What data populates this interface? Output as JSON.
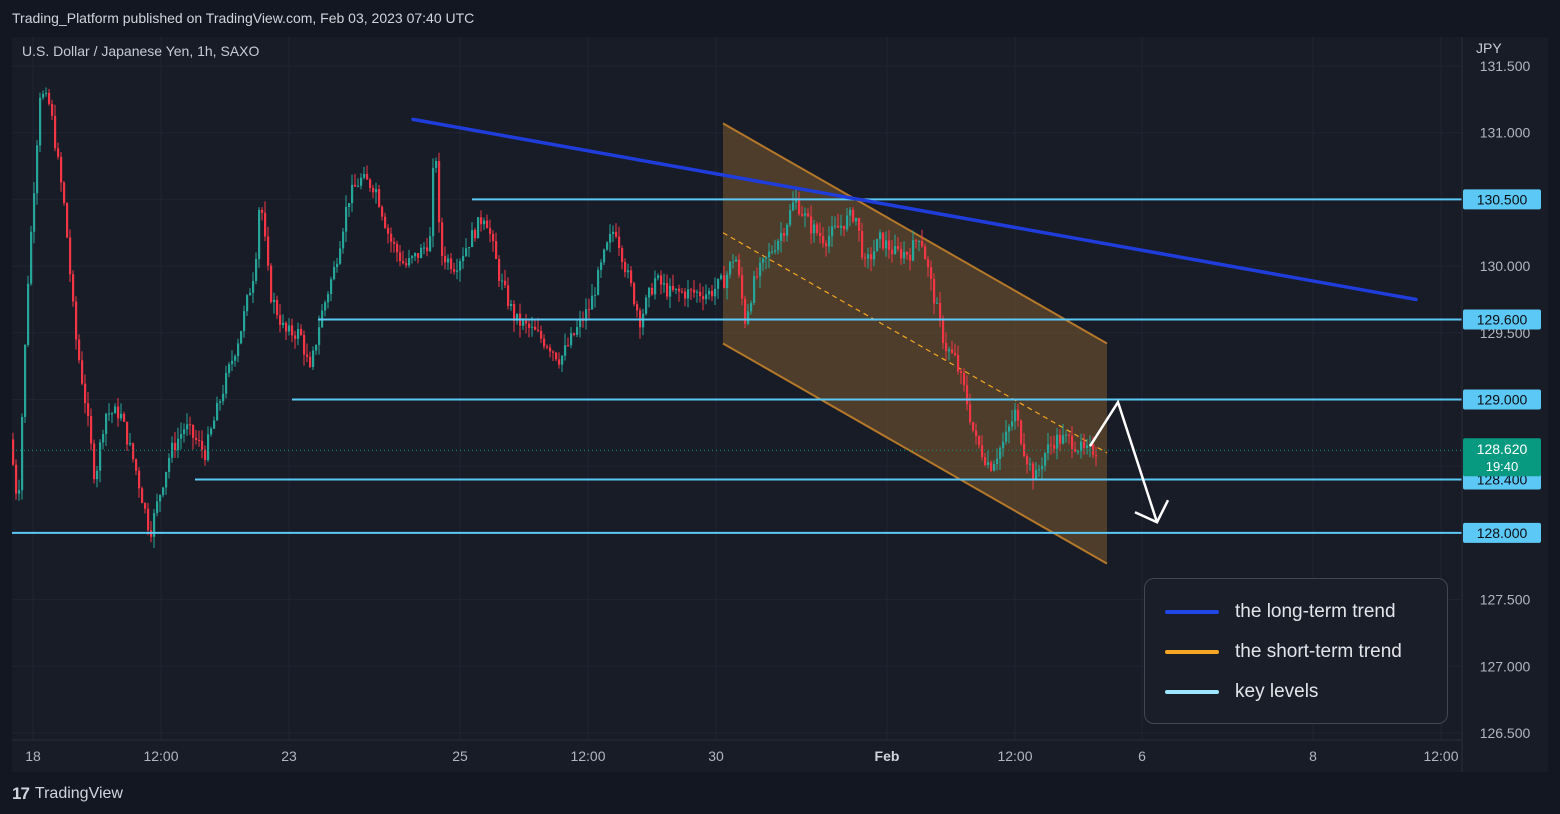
{
  "header": {
    "publisher_line": "Trading_Platform published on TradingView.com, Feb 03, 2023 07:40 UTC"
  },
  "chart": {
    "symbol_title": "U.S. Dollar / Japanese Yen, 1h, SAXO",
    "currency": "JPY",
    "brand": "TradingView",
    "brand_logo": "17"
  },
  "colors": {
    "background": "#131722",
    "chart_background": "#181c27",
    "up_candle": "#26a69a",
    "down_candle": "#f23645",
    "long_term_trend": "#1f3ddb",
    "short_term_trend": "#f5a623",
    "key_levels": "#5cc8f5",
    "channel_fill": "#7a5a2e",
    "last_price_badge": "#089981"
  },
  "legend": {
    "items": [
      {
        "label": "the long-term trend",
        "color": "#2146e8"
      },
      {
        "label": "the short-term trend",
        "color": "#f5a623"
      },
      {
        "label": "key levels",
        "color": "#9ee6ff"
      }
    ]
  },
  "chart_data": {
    "type": "candlestick",
    "y_axis": {
      "side": "right",
      "range": [
        126.4,
        131.6
      ],
      "ticks": [
        "131.500",
        "131.000",
        "130.500",
        "130.000",
        "129.500",
        "129.000",
        "128.500",
        "128.000",
        "127.500",
        "127.000",
        "126.500"
      ]
    },
    "x_axis": {
      "ticks": [
        "18",
        "12:00",
        "23",
        "25",
        "12:00",
        "30",
        "Feb",
        "12:00",
        "6",
        "8",
        "12:00"
      ]
    },
    "last_price": {
      "value": "128.620",
      "countdown": "19:40"
    },
    "key_levels": [
      {
        "value": 130.5,
        "label": "130.500"
      },
      {
        "value": 129.6,
        "label": "129.600"
      },
      {
        "value": 129.0,
        "label": "129.000"
      },
      {
        "value": 128.4,
        "label": "128.400"
      },
      {
        "value": 128.0,
        "label": "128.000"
      }
    ],
    "long_term_trendline": {
      "from": 131.1,
      "to": 129.75
    },
    "descending_channel": {
      "upper": {
        "from": 131.07,
        "to": 129.42
      },
      "lower": {
        "from": 129.42,
        "to": 127.77
      },
      "mid": {
        "from": 130.25,
        "to": 128.6
      }
    },
    "forecast_path": [
      128.65,
      128.98,
      128.08
    ],
    "candle_path": [
      [
        0,
        128.7
      ],
      [
        8,
        128.2
      ],
      [
        18,
        129.9
      ],
      [
        30,
        131.3
      ],
      [
        40,
        131.2
      ],
      [
        55,
        130.4
      ],
      [
        65,
        129.5
      ],
      [
        75,
        129.0
      ],
      [
        85,
        128.4
      ],
      [
        95,
        128.9
      ],
      [
        110,
        128.9
      ],
      [
        125,
        128.5
      ],
      [
        140,
        128.0
      ],
      [
        160,
        128.6
      ],
      [
        175,
        128.8
      ],
      [
        195,
        128.6
      ],
      [
        210,
        129.0
      ],
      [
        230,
        129.5
      ],
      [
        245,
        130.0
      ],
      [
        250,
        130.55
      ],
      [
        260,
        129.8
      ],
      [
        275,
        129.5
      ],
      [
        290,
        129.5
      ],
      [
        300,
        129.2
      ],
      [
        310,
        129.6
      ],
      [
        325,
        130.0
      ],
      [
        338,
        130.5
      ],
      [
        350,
        130.65
      ],
      [
        365,
        130.6
      ],
      [
        380,
        130.2
      ],
      [
        395,
        130.0
      ],
      [
        410,
        130.1
      ],
      [
        420,
        130.2
      ],
      [
        425,
        131.0
      ],
      [
        430,
        130.1
      ],
      [
        445,
        130.0
      ],
      [
        460,
        130.2
      ],
      [
        475,
        130.4
      ],
      [
        490,
        129.9
      ],
      [
        505,
        129.6
      ],
      [
        525,
        129.5
      ],
      [
        540,
        129.4
      ],
      [
        550,
        129.3
      ],
      [
        565,
        129.5
      ],
      [
        580,
        129.7
      ],
      [
        595,
        130.1
      ],
      [
        605,
        130.3
      ],
      [
        615,
        130.0
      ],
      [
        630,
        129.6
      ],
      [
        645,
        129.9
      ],
      [
        660,
        129.8
      ],
      [
        680,
        129.8
      ],
      [
        700,
        129.8
      ],
      [
        715,
        129.9
      ],
      [
        725,
        130.1
      ],
      [
        735,
        129.6
      ],
      [
        745,
        129.9
      ],
      [
        760,
        130.1
      ],
      [
        775,
        130.3
      ],
      [
        785,
        130.5
      ],
      [
        800,
        130.3
      ],
      [
        815,
        130.2
      ],
      [
        830,
        130.3
      ],
      [
        845,
        130.4
      ],
      [
        855,
        130.0
      ],
      [
        870,
        130.2
      ],
      [
        885,
        130.1
      ],
      [
        900,
        130.1
      ],
      [
        910,
        130.25
      ],
      [
        920,
        129.9
      ],
      [
        935,
        129.4
      ],
      [
        945,
        129.3
      ],
      [
        955,
        129.05
      ],
      [
        965,
        128.7
      ],
      [
        980,
        128.5
      ],
      [
        995,
        128.7
      ],
      [
        1005,
        128.9
      ],
      [
        1015,
        128.6
      ],
      [
        1025,
        128.4
      ],
      [
        1035,
        128.6
      ],
      [
        1045,
        128.7
      ],
      [
        1060,
        128.7
      ],
      [
        1075,
        128.6
      ],
      [
        1083,
        128.62
      ]
    ]
  }
}
